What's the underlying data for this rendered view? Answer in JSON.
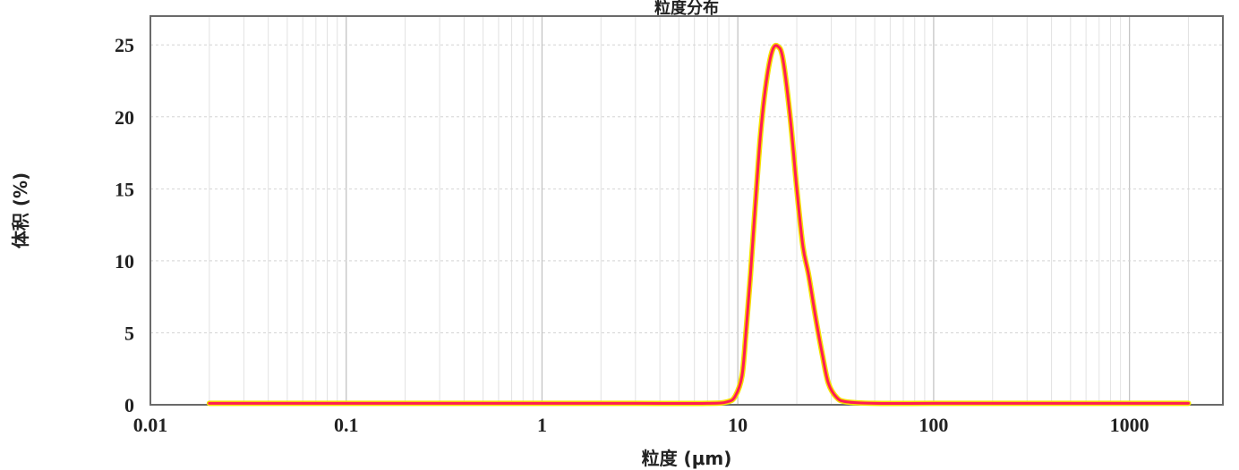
{
  "chart_data": {
    "type": "line",
    "title": "粒度分布",
    "xlabel": "粒度 (μm)",
    "ylabel": "体积 (%)",
    "x_scale": "log",
    "xlim": [
      0.01,
      3000
    ],
    "ylim": [
      0,
      27
    ],
    "x_tick_labels": [
      "0.01",
      "0.1",
      "1",
      "10",
      "100",
      "1000"
    ],
    "x_tick_values": [
      0.01,
      0.1,
      1,
      10,
      100,
      1000
    ],
    "y_tick_labels": [
      "0",
      "5",
      "10",
      "15",
      "20",
      "25"
    ],
    "y_tick_values": [
      0,
      5,
      10,
      15,
      20,
      25
    ],
    "grid": true,
    "legend": "none",
    "series": [
      {
        "color": "#ff1a55",
        "glow_color": "#f5e000",
        "points": [
          [
            0.02,
            0.1
          ],
          [
            0.05,
            0.1
          ],
          [
            0.1,
            0.1
          ],
          [
            0.5,
            0.1
          ],
          [
            1,
            0.1
          ],
          [
            3,
            0.1
          ],
          [
            7,
            0.1
          ],
          [
            8.8,
            0.2
          ],
          [
            9.7,
            0.6
          ],
          [
            10.5,
            2
          ],
          [
            11,
            5
          ],
          [
            11.6,
            9
          ],
          [
            12.3,
            14
          ],
          [
            13.1,
            19
          ],
          [
            14,
            22.5
          ],
          [
            15,
            24.6
          ],
          [
            16,
            24.9
          ],
          [
            17,
            24
          ],
          [
            18.5,
            20
          ],
          [
            20,
            15
          ],
          [
            21.5,
            11
          ],
          [
            23,
            9
          ],
          [
            25,
            6
          ],
          [
            27,
            3.5
          ],
          [
            29,
            1.5
          ],
          [
            32,
            0.5
          ],
          [
            36,
            0.2
          ],
          [
            50,
            0.1
          ],
          [
            100,
            0.1
          ],
          [
            500,
            0.1
          ],
          [
            2000,
            0.1
          ]
        ]
      }
    ]
  }
}
